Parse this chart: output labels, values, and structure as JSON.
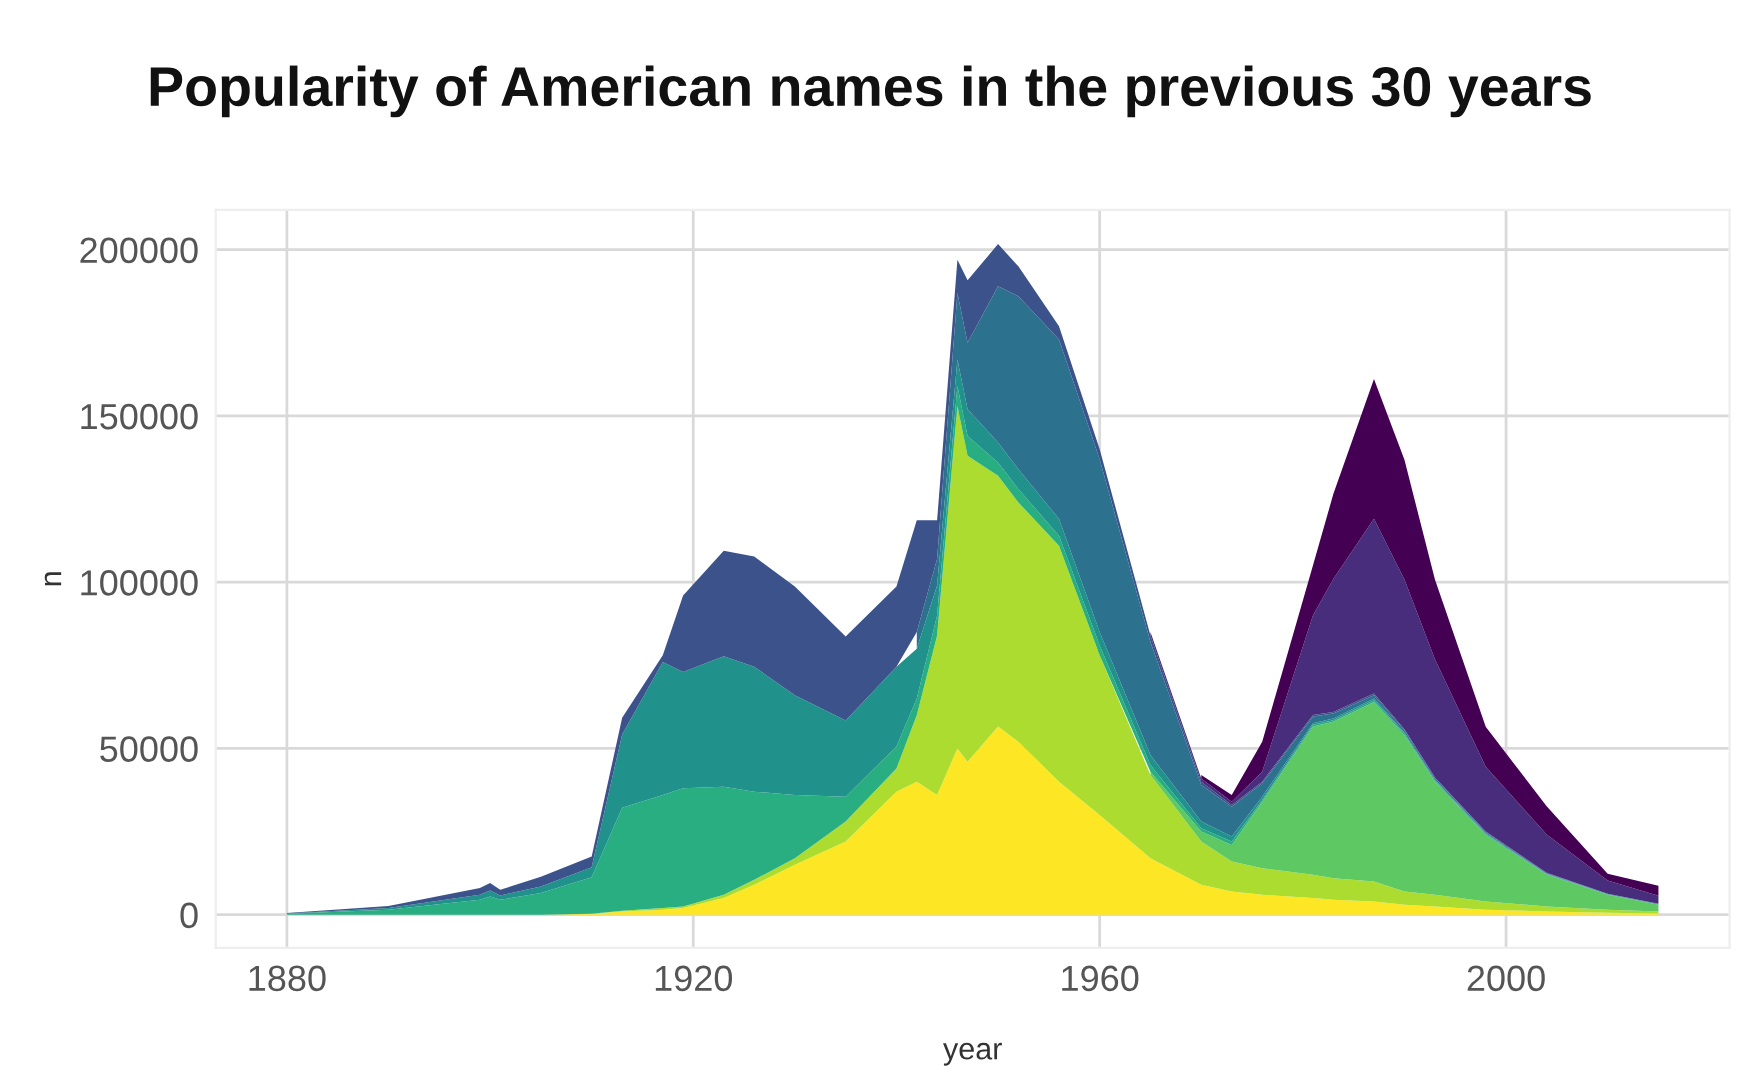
{
  "chart_data": {
    "type": "area",
    "stacked": true,
    "title": "Popularity of American names in the previous 30 years",
    "xlabel": "year",
    "ylabel": "n",
    "x": [
      1880,
      1890,
      1899,
      1900,
      1901,
      1905,
      1910,
      1913,
      1917,
      1919,
      1923,
      1926,
      1930,
      1935,
      1940,
      1942,
      1944,
      1946,
      1947,
      1950,
      1952,
      1956,
      1960,
      1965,
      1970,
      1973,
      1976,
      1981,
      1983,
      1987,
      1990,
      1993,
      1998,
      2004,
      2010,
      2015
    ],
    "series": [
      {
        "color": "#fde725",
        "values": [
          0,
          0,
          0,
          0,
          0,
          0,
          300,
          1000,
          1500,
          2000,
          5000,
          9000,
          15000,
          22000,
          37000,
          40000,
          36000,
          50000,
          46000,
          56600,
          52000,
          40000,
          30000,
          17000,
          9000,
          7000,
          6000,
          5000,
          4500,
          4000,
          3000,
          2500,
          1500,
          1000,
          600,
          400
        ]
      },
      {
        "color": "#addc30",
        "values": [
          0,
          0,
          0,
          0,
          0,
          0,
          0,
          200,
          500,
          500,
          1000,
          1500,
          2000,
          6000,
          7000,
          20000,
          48000,
          103000,
          92000,
          75400,
          72000,
          71000,
          48000,
          25000,
          13000,
          9000,
          8000,
          7000,
          6500,
          6000,
          4000,
          3500,
          2500,
          1500,
          900,
          600
        ]
      },
      {
        "color": "#5ec962",
        "values": [
          null,
          null,
          null,
          null,
          null,
          null,
          null,
          null,
          null,
          null,
          null,
          null,
          null,
          null,
          null,
          null,
          null,
          null,
          null,
          null,
          null,
          null,
          null,
          1000,
          3000,
          5000,
          20000,
          44600,
          47000,
          54000,
          47000,
          34000,
          20000,
          9500,
          4500,
          2000
        ]
      },
      {
        "color": "#28ae80",
        "values": [
          300,
          1500,
          4500,
          5500,
          4500,
          6500,
          11000,
          31000,
          34000,
          35500,
          32500,
          26500,
          19000,
          7500,
          6600,
          5000,
          6000,
          6000,
          6000,
          4000,
          4000,
          3000,
          3000,
          2000,
          1000,
          1000,
          500,
          500,
          500,
          500,
          400,
          300,
          300,
          200,
          100,
          100
        ]
      },
      {
        "color": "#21918c",
        "values": [
          100,
          500,
          1500,
          1800,
          1300,
          2000,
          3000,
          22000,
          40000,
          35000,
          39200,
          37600,
          30000,
          22900,
          24000,
          15000,
          9000,
          8000,
          8000,
          6000,
          6000,
          5000,
          4000,
          3000,
          2000,
          1500,
          1000,
          500,
          500,
          500,
          400,
          300,
          200,
          100,
          100,
          100
        ]
      },
      {
        "color": "#2c728e",
        "values": [
          null,
          null,
          null,
          null,
          null,
          null,
          null,
          null,
          null,
          null,
          null,
          null,
          null,
          null,
          null,
          5000,
          8000,
          20000,
          20000,
          47000,
          52000,
          54000,
          52000,
          34000,
          11000,
          9000,
          4000,
          2000,
          1500,
          1000,
          700,
          500,
          300,
          200,
          100,
          100
        ]
      },
      {
        "color": "#3b528b",
        "values": [
          100,
          600,
          2000,
          2200,
          1700,
          2900,
          3200,
          5000,
          2000,
          23000,
          31800,
          33100,
          32700,
          25300,
          24100,
          33600,
          11600,
          10000,
          18800,
          12700,
          9000,
          4000,
          3000,
          2000,
          1000,
          500,
          500,
          500,
          500,
          500,
          300,
          200,
          200,
          100,
          0,
          0
        ]
      },
      {
        "color": "#472d7b",
        "values": [
          null,
          null,
          null,
          null,
          null,
          null,
          null,
          null,
          null,
          null,
          null,
          null,
          null,
          null,
          null,
          null,
          null,
          null,
          null,
          null,
          null,
          null,
          null,
          1000,
          1000,
          1000,
          3000,
          30000,
          40000,
          52600,
          45000,
          35500,
          19500,
          11500,
          4000,
          2400
        ]
      },
      {
        "color": "#440154",
        "values": [
          null,
          null,
          null,
          null,
          null,
          null,
          null,
          null,
          null,
          null,
          null,
          null,
          null,
          null,
          null,
          null,
          null,
          null,
          null,
          null,
          null,
          null,
          null,
          null,
          1000,
          2000,
          9000,
          15000,
          25500,
          42000,
          36000,
          24000,
          12000,
          8500,
          2000,
          3000
        ]
      }
    ],
    "xlim": [
      1873,
      2022
    ],
    "ylim": [
      -10000,
      212000
    ],
    "xticks": [
      1880,
      1920,
      1960,
      2000
    ],
    "yticks": [
      0,
      50000,
      100000,
      150000,
      200000
    ],
    "grid": true
  }
}
